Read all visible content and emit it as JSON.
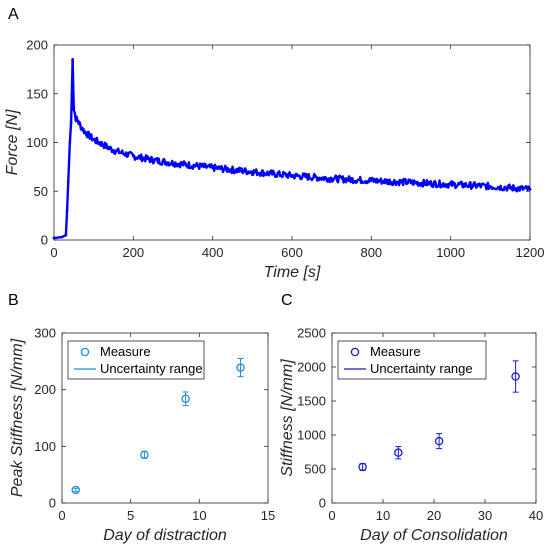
{
  "panels": {
    "a": "A",
    "b": "B",
    "c": "C"
  },
  "chart_data": [
    {
      "id": "A",
      "type": "line",
      "xlabel": "Time [s]",
      "ylabel": "Force [N]",
      "xlim": [
        0,
        1200
      ],
      "ylim": [
        0,
        200
      ],
      "xticks": [
        0,
        200,
        400,
        600,
        800,
        1000,
        1200
      ],
      "yticks": [
        0,
        50,
        100,
        150,
        200
      ],
      "grid": false,
      "color": "#0000ff",
      "x": [
        0,
        20,
        30,
        33,
        36,
        40,
        43,
        45,
        47,
        50,
        55,
        60,
        70,
        80,
        100,
        150,
        200,
        250,
        300,
        400,
        500,
        600,
        700,
        800,
        900,
        1000,
        1100,
        1200
      ],
      "y": [
        2,
        3,
        5,
        30,
        60,
        100,
        120,
        150,
        185,
        135,
        125,
        122,
        115,
        110,
        103,
        92,
        86,
        82,
        79,
        74,
        70,
        66,
        63,
        61,
        59,
        57,
        55,
        52
      ]
    },
    {
      "id": "B",
      "type": "scatter",
      "xlabel": "Day of distraction",
      "ylabel": "Peak Stiffness [N/mm]",
      "xlim": [
        0,
        15
      ],
      "ylim": [
        0,
        300
      ],
      "xticks": [
        0,
        5,
        10,
        15
      ],
      "yticks": [
        0,
        100,
        200,
        300
      ],
      "grid": false,
      "color": "#1f8fd6",
      "legend": {
        "position": "top-left",
        "entries": [
          "Measure",
          "Uncertainty range"
        ]
      },
      "x": [
        1,
        6,
        9,
        13
      ],
      "y": [
        23,
        85,
        184,
        239
      ],
      "yerr": [
        3,
        6,
        12,
        16
      ]
    },
    {
      "id": "C",
      "type": "scatter",
      "xlabel": "Day of Consolidation",
      "ylabel": "Stiffness [N/mm]",
      "xlim": [
        0,
        40
      ],
      "ylim": [
        0,
        2500
      ],
      "xticks": [
        0,
        10,
        20,
        30,
        40
      ],
      "yticks": [
        0,
        500,
        1000,
        1500,
        2000,
        2500
      ],
      "grid": false,
      "color": "#1a1ad6",
      "legend": {
        "position": "top-left",
        "entries": [
          "Measure",
          "Uncertainty range"
        ]
      },
      "x": [
        6,
        13,
        21,
        36
      ],
      "y": [
        530,
        740,
        910,
        1860
      ],
      "yerr": [
        50,
        90,
        110,
        230
      ]
    }
  ]
}
